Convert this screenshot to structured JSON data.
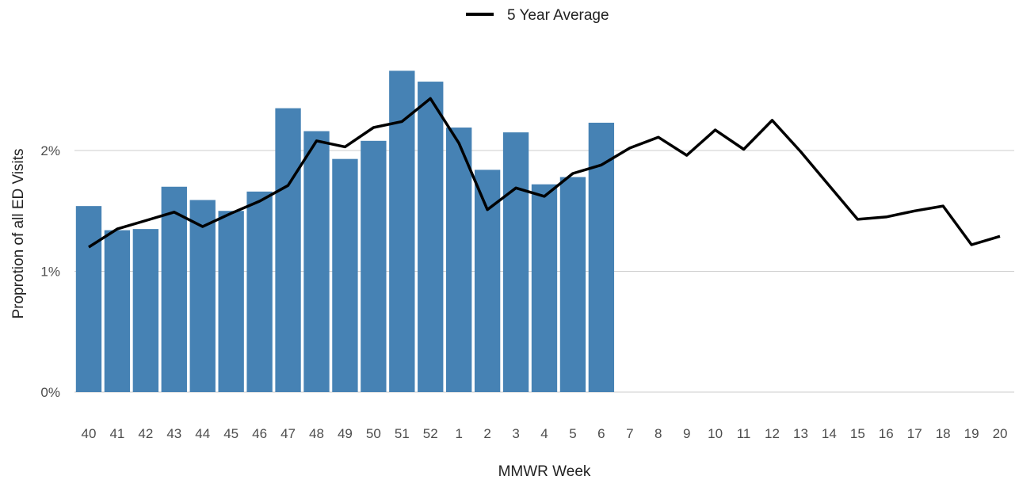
{
  "chart_data": {
    "type": "bar",
    "x_axis_label": "MMWR Week",
    "y_axis_label": "Proprotion of all ED Visits",
    "categories": [
      "40",
      "41",
      "42",
      "43",
      "44",
      "45",
      "46",
      "47",
      "48",
      "49",
      "50",
      "51",
      "52",
      "1",
      "2",
      "3",
      "4",
      "5",
      "6",
      "7",
      "8",
      "9",
      "10",
      "11",
      "12",
      "13",
      "14",
      "15",
      "16",
      "17",
      "18",
      "19",
      "20"
    ],
    "y_ticks": [
      "0%",
      "1%",
      "2%"
    ],
    "y_tick_values": [
      0,
      1,
      2
    ],
    "ylim": [
      0,
      2.8
    ],
    "grid": "horizontal",
    "legend_position": "top-center",
    "bar_color": "#4682b4",
    "line_color": "#000000",
    "bars": {
      "values": [
        1.54,
        1.34,
        1.35,
        1.7,
        1.59,
        1.5,
        1.66,
        2.35,
        2.16,
        1.93,
        2.08,
        2.66,
        2.57,
        2.19,
        1.84,
        2.15,
        1.72,
        1.78,
        2.23,
        null,
        null,
        null,
        null,
        null,
        null,
        null,
        null,
        null,
        null,
        null,
        null,
        null,
        null
      ]
    },
    "series": [
      {
        "name": "5 Year Average",
        "type": "line",
        "values": [
          1.2,
          1.35,
          1.42,
          1.49,
          1.37,
          1.48,
          1.58,
          1.71,
          2.08,
          2.03,
          2.19,
          2.24,
          2.43,
          2.06,
          1.51,
          1.69,
          1.62,
          1.81,
          1.88,
          2.02,
          2.11,
          1.96,
          2.17,
          2.01,
          2.25,
          1.99,
          1.71,
          1.43,
          1.45,
          1.5,
          1.54,
          1.22,
          1.29
        ]
      }
    ]
  }
}
